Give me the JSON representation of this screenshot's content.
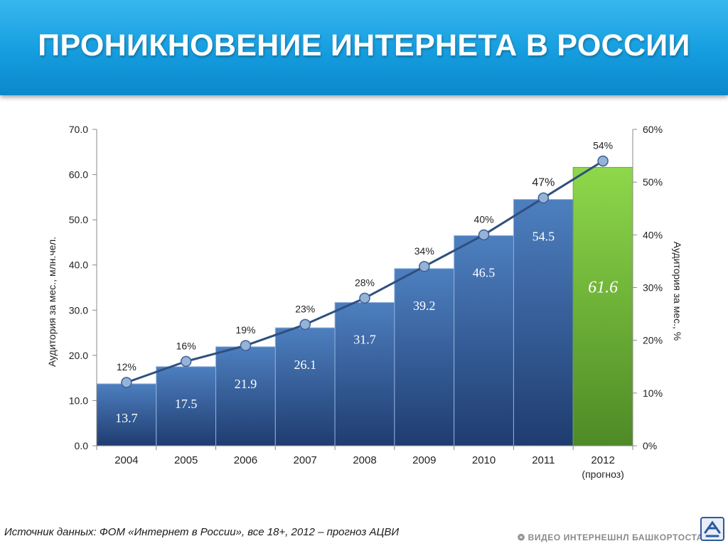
{
  "header": {
    "title": "ПРОНИКНОВЕНИЕ ИНТЕРНЕТА В РОССИИ"
  },
  "chart_data": {
    "type": "bar",
    "categories": [
      "2004",
      "2005",
      "2006",
      "2007",
      "2008",
      "2009",
      "2010",
      "2011",
      "2012"
    ],
    "category_sublabels": [
      "",
      "",
      "",
      "",
      "",
      "",
      "",
      "",
      "(прогноз)"
    ],
    "series": [
      {
        "values": [
          13.7,
          17.5,
          21.9,
          26.1,
          31.7,
          39.2,
          46.5,
          54.5,
          61.6
        ],
        "axis": "left",
        "type": "bar"
      },
      {
        "values": [
          12,
          16,
          19,
          23,
          28,
          34,
          40,
          47,
          54
        ],
        "axis": "right",
        "type": "line"
      }
    ],
    "bar_value_labels": [
      "13.7",
      "17.5",
      "21.9",
      "26.1",
      "31.7",
      "39.2",
      "46.5",
      "54.5",
      "61.6"
    ],
    "line_value_labels": [
      "12%",
      "16%",
      "19%",
      "23%",
      "28%",
      "34%",
      "40%",
      "47%",
      "54%"
    ],
    "y_left": {
      "label": "Аудитория за мес., млн.чел.",
      "range": [
        0,
        70
      ],
      "ticks": [
        "0.0",
        "10.0",
        "20.0",
        "30.0",
        "40.0",
        "50.0",
        "60.0",
        "70.0"
      ]
    },
    "y_right": {
      "label": "Аудитория за мес., %",
      "range": [
        0,
        60
      ],
      "ticks": [
        "0%",
        "10%",
        "20%",
        "30%",
        "40%",
        "50%",
        "60%"
      ]
    },
    "grid": false,
    "legend": "none",
    "colors": {
      "bar_top": "#4d7fbf",
      "bar_bottom": "#1f3c70",
      "forecast_top": "#8ed84a",
      "forecast_bottom": "#4e8a26",
      "line": "#2f4f80",
      "marker": "#95b3d7"
    }
  },
  "footer": {
    "source": "Источник данных: ФОМ «Интернет в России»,  все 18+, 2012 – прогноз АЦВИ",
    "logo_text": "ВИДЕО ИНТЕРНЕШНЛ БАШКОРТОСТАН"
  }
}
